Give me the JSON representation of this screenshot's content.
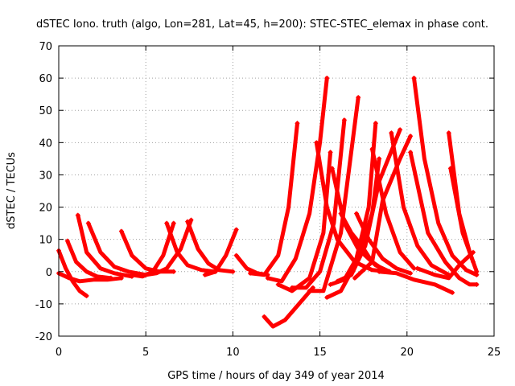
{
  "chart_data": {
    "type": "line",
    "title": "dSTEC Iono. truth (algo, Lon=281, Lat=45, h=200): STEC-STEC_elemax in phase cont.",
    "xlabel": "GPS time / hours of day 349 of year 2014",
    "ylabel": "dSTEC  / TECUs",
    "xlim": [
      0,
      25
    ],
    "ylim": [
      -20,
      70
    ],
    "x_ticks": [
      "0",
      "5",
      "10",
      "15",
      "20",
      "25"
    ],
    "y_ticks": [
      "-20",
      "-10",
      "0",
      "10",
      "20",
      "30",
      "40",
      "50",
      "60",
      "70"
    ],
    "grid": true,
    "legend": "none",
    "series_color": "#ff0000",
    "series": [
      {
        "x": [
          0.0,
          0.4,
          0.8,
          1.2,
          1.6
        ],
        "y": [
          6.5,
          1.0,
          -3.0,
          -6.0,
          -7.5
        ]
      },
      {
        "x": [
          0.0,
          0.6,
          1.2,
          2.0,
          2.8,
          3.6
        ],
        "y": [
          -0.5,
          -2.0,
          -3.0,
          -2.5,
          -2.5,
          -2.0
        ]
      },
      {
        "x": [
          0.5,
          1.0,
          1.6,
          2.2,
          3.0
        ],
        "y": [
          9.5,
          3.0,
          0.0,
          -1.5,
          -2.0
        ]
      },
      {
        "x": [
          1.1,
          1.6,
          2.4,
          3.2,
          4.2
        ],
        "y": [
          17.5,
          6.0,
          1.0,
          -0.5,
          -1.5
        ]
      },
      {
        "x": [
          1.7,
          2.4,
          3.2,
          4.0,
          5.0
        ],
        "y": [
          15.0,
          6.0,
          1.5,
          0.0,
          -1.0
        ]
      },
      {
        "x": [
          3.6,
          4.2,
          5.0,
          5.8,
          6.6
        ],
        "y": [
          12.5,
          5.0,
          1.0,
          0.0,
          0.0
        ]
      },
      {
        "x": [
          4.2,
          4.8,
          5.4,
          6.0,
          6.6
        ],
        "y": [
          -1.0,
          -1.5,
          0.0,
          5.0,
          15.0
        ]
      },
      {
        "x": [
          6.2,
          6.8,
          7.4,
          8.2,
          9.0
        ],
        "y": [
          15.0,
          6.0,
          2.0,
          0.5,
          0.0
        ]
      },
      {
        "x": [
          5.0,
          5.6,
          6.2,
          7.0,
          7.6
        ],
        "y": [
          -1.0,
          -0.5,
          1.0,
          7.0,
          16.0
        ]
      },
      {
        "x": [
          7.4,
          8.0,
          8.6,
          9.2,
          10.0
        ],
        "y": [
          15.5,
          7.0,
          2.5,
          0.5,
          0.0
        ]
      },
      {
        "x": [
          8.4,
          9.0,
          9.6,
          10.2
        ],
        "y": [
          -1.0,
          0.0,
          5.0,
          13.0
        ]
      },
      {
        "x": [
          10.2,
          10.8,
          11.4,
          12.0
        ],
        "y": [
          5.0,
          1.0,
          -0.5,
          -1.0
        ]
      },
      {
        "x": [
          11.8,
          12.3,
          13.0,
          13.8,
          14.6
        ],
        "y": [
          -14.0,
          -17.0,
          -15.0,
          -10.0,
          -5.0
        ]
      },
      {
        "x": [
          11.0,
          11.8,
          12.6,
          13.2,
          13.7
        ],
        "y": [
          -0.5,
          -1.0,
          5.0,
          20.0,
          46.0
        ]
      },
      {
        "x": [
          12.0,
          12.8,
          13.6,
          14.4,
          15.0,
          15.4
        ],
        "y": [
          -2.0,
          -3.0,
          4.0,
          18.0,
          40.0,
          60.0
        ]
      },
      {
        "x": [
          12.6,
          13.4,
          14.4,
          15.2,
          15.6
        ],
        "y": [
          -4.0,
          -6.0,
          -2.0,
          12.0,
          37.0
        ]
      },
      {
        "x": [
          13.4,
          14.2,
          15.0,
          15.8,
          16.4
        ],
        "y": [
          -5.0,
          -5.0,
          0.0,
          15.0,
          47.0
        ]
      },
      {
        "x": [
          14.4,
          15.2,
          16.2,
          17.2
        ],
        "y": [
          -6.0,
          -6.0,
          12.0,
          54.0
        ]
      },
      {
        "x": [
          15.4,
          16.2,
          17.0,
          17.8,
          18.2
        ],
        "y": [
          -8.0,
          -6.0,
          2.0,
          20.0,
          46.0
        ]
      },
      {
        "x": [
          15.6,
          16.4,
          17.2,
          18.0,
          18.4
        ],
        "y": [
          -4.0,
          -2.5,
          5.0,
          18.0,
          35.0
        ]
      },
      {
        "x": [
          16.0,
          16.8,
          17.6,
          18.4,
          19.6
        ],
        "y": [
          -3.0,
          -1.0,
          8.0,
          28.0,
          44.0
        ]
      },
      {
        "x": [
          17.0,
          18.0,
          18.6,
          19.6,
          20.2
        ],
        "y": [
          -2.0,
          3.0,
          22.0,
          35.0,
          42.0
        ]
      },
      {
        "x": [
          14.8,
          15.4,
          16.0,
          17.0,
          18.0,
          19.0
        ],
        "y": [
          40.0,
          20.0,
          10.0,
          3.0,
          0.5,
          0.0
        ]
      },
      {
        "x": [
          15.7,
          16.4,
          17.2,
          18.2,
          19.0
        ],
        "y": [
          32.0,
          15.0,
          7.0,
          2.0,
          0.0
        ]
      },
      {
        "x": [
          17.1,
          17.8,
          18.6,
          19.4,
          20.2
        ],
        "y": [
          18.0,
          10.0,
          4.0,
          1.0,
          -0.5
        ]
      },
      {
        "x": [
          18.0,
          18.8,
          19.6,
          20.4
        ],
        "y": [
          38.0,
          18.0,
          6.0,
          1.0
        ]
      },
      {
        "x": [
          19.1,
          19.8,
          20.6,
          21.4,
          22.4
        ],
        "y": [
          43.0,
          20.0,
          8.0,
          2.0,
          -1.0
        ]
      },
      {
        "x": [
          20.4,
          21.0,
          21.8,
          22.6,
          23.4,
          24.0
        ],
        "y": [
          60.0,
          35.0,
          15.0,
          5.0,
          0.5,
          -1.0
        ]
      },
      {
        "x": [
          20.2,
          21.2,
          22.2,
          23.0,
          23.6,
          24.0
        ],
        "y": [
          37.0,
          12.0,
          3.0,
          -2.0,
          -4.0,
          -4.0
        ]
      },
      {
        "x": [
          22.4,
          23.0,
          23.6,
          24.0
        ],
        "y": [
          43.0,
          18.0,
          6.0,
          0.0
        ]
      },
      {
        "x": [
          22.5,
          23.2,
          23.8
        ],
        "y": [
          32.0,
          12.0,
          3.0
        ]
      },
      {
        "x": [
          18.4,
          19.4,
          20.4,
          21.6,
          22.6
        ],
        "y": [
          0.0,
          -0.5,
          -2.5,
          -4.0,
          -6.5
        ]
      },
      {
        "x": [
          20.6,
          21.6,
          22.4,
          23.0,
          23.8
        ],
        "y": [
          1.0,
          -1.0,
          -2.0,
          2.0,
          6.0
        ]
      },
      {
        "x": [
          16.2,
          16.8,
          17.4,
          18.0,
          18.8
        ],
        "y": [
          18.0,
          12.0,
          8.0,
          3.0,
          0.0
        ]
      }
    ]
  }
}
